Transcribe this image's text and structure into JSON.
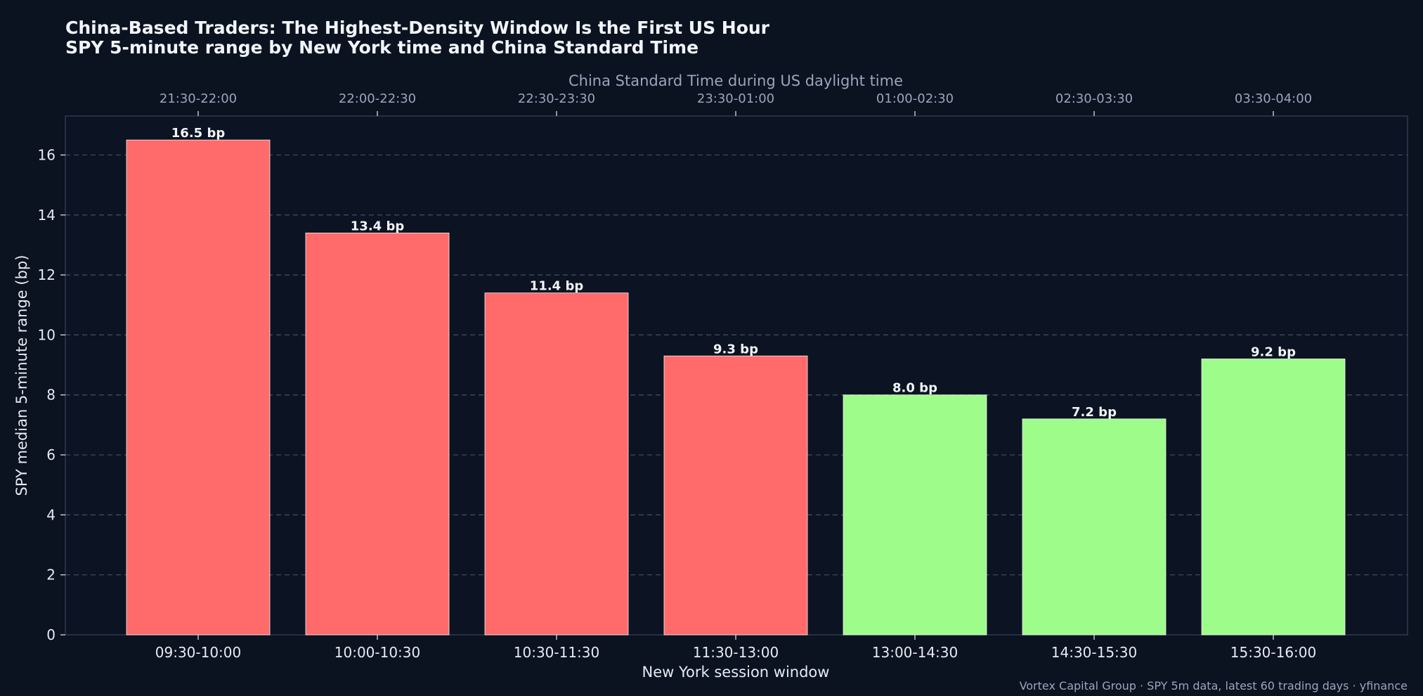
{
  "colors": {
    "background": "#0b1220",
    "accent_high": "#ff6b6b",
    "accent_low": "#9dfc8a",
    "grid": "#5a6478",
    "frame": "#2d3a50",
    "text": "#e6ebf2",
    "muted_text": "#9aa6bb"
  },
  "chart_data": {
    "type": "bar",
    "title": "China-Based Traders: The Highest-Density Window Is the First US Hour",
    "subtitle": "SPY 5-minute range by New York time and China Standard Time",
    "xlabel": "New York session window",
    "ylabel": "SPY median 5-minute range (bp)",
    "secondary_xlabel": "China Standard Time during US daylight time",
    "categories": [
      "09:30-10:00",
      "10:00-10:30",
      "10:30-11:30",
      "11:30-13:00",
      "13:00-14:30",
      "14:30-15:30",
      "15:30-16:00"
    ],
    "secondary_categories": [
      "21:30-22:00",
      "22:00-22:30",
      "22:30-23:30",
      "23:30-01:00",
      "01:00-02:30",
      "02:30-03:30",
      "03:30-04:00"
    ],
    "values": [
      16.5,
      13.4,
      11.4,
      9.3,
      8.0,
      7.2,
      9.2
    ],
    "data_labels": [
      "16.5 bp",
      "13.4 bp",
      "11.4 bp",
      "9.3 bp",
      "8.0 bp",
      "7.2 bp",
      "9.2 bp"
    ],
    "bar_colors": [
      "#ff6b6b",
      "#ff6b6b",
      "#ff6b6b",
      "#ff6b6b",
      "#9dfc8a",
      "#9dfc8a",
      "#9dfc8a"
    ],
    "ylim": [
      0,
      17.3
    ],
    "yticks": [
      0,
      2,
      4,
      6,
      8,
      10,
      12,
      14,
      16
    ],
    "grid": true,
    "legend": "none"
  },
  "footer": {
    "source_note": "Vortex Capital Group · SPY 5m data, latest 60 trading days · yfinance"
  }
}
